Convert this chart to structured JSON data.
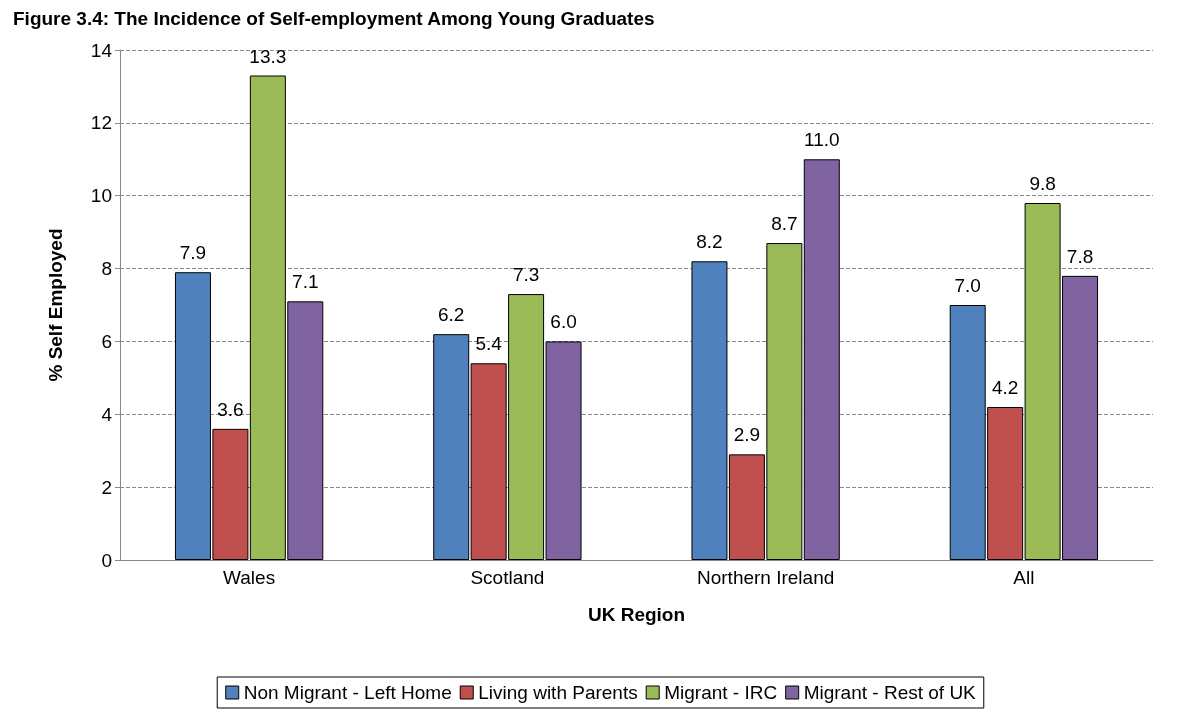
{
  "chart_data": {
    "type": "bar",
    "title": "Figure 3.4: The Incidence of Self-employment Among Young Graduates",
    "xlabel": "UK Region",
    "ylabel": "% Self Employed",
    "categories": [
      "Wales",
      "Scotland",
      "Northern Ireland",
      "All"
    ],
    "series": [
      {
        "name": "Non Migrant - Left Home",
        "color": "#4f81bd",
        "values": [
          7.9,
          6.2,
          8.2,
          7.0
        ],
        "value_labels": [
          "7.9",
          "6.2",
          "8.2",
          "7.0"
        ]
      },
      {
        "name": "Living with Parents",
        "color": "#c0504d",
        "values": [
          3.6,
          5.4,
          2.9,
          4.2
        ],
        "value_labels": [
          "3.6",
          "5.4",
          "2.9",
          "4.2"
        ]
      },
      {
        "name": "Migrant - IRC",
        "color": "#9bbb59",
        "values": [
          13.3,
          7.3,
          8.7,
          9.8
        ],
        "value_labels": [
          "13.3",
          "7.3",
          "8.7",
          "9.8"
        ]
      },
      {
        "name": "Migrant - Rest of UK",
        "color": "#8064a2",
        "values": [
          7.1,
          6.0,
          11.0,
          7.8
        ],
        "value_labels": [
          "7.1",
          "6.0",
          "11.0",
          "7.8"
        ]
      }
    ],
    "ylim": [
      0,
      14
    ],
    "yticks": [
      0,
      2,
      4,
      6,
      8,
      10,
      12,
      14
    ],
    "grid": "y",
    "legend": "bottom"
  }
}
